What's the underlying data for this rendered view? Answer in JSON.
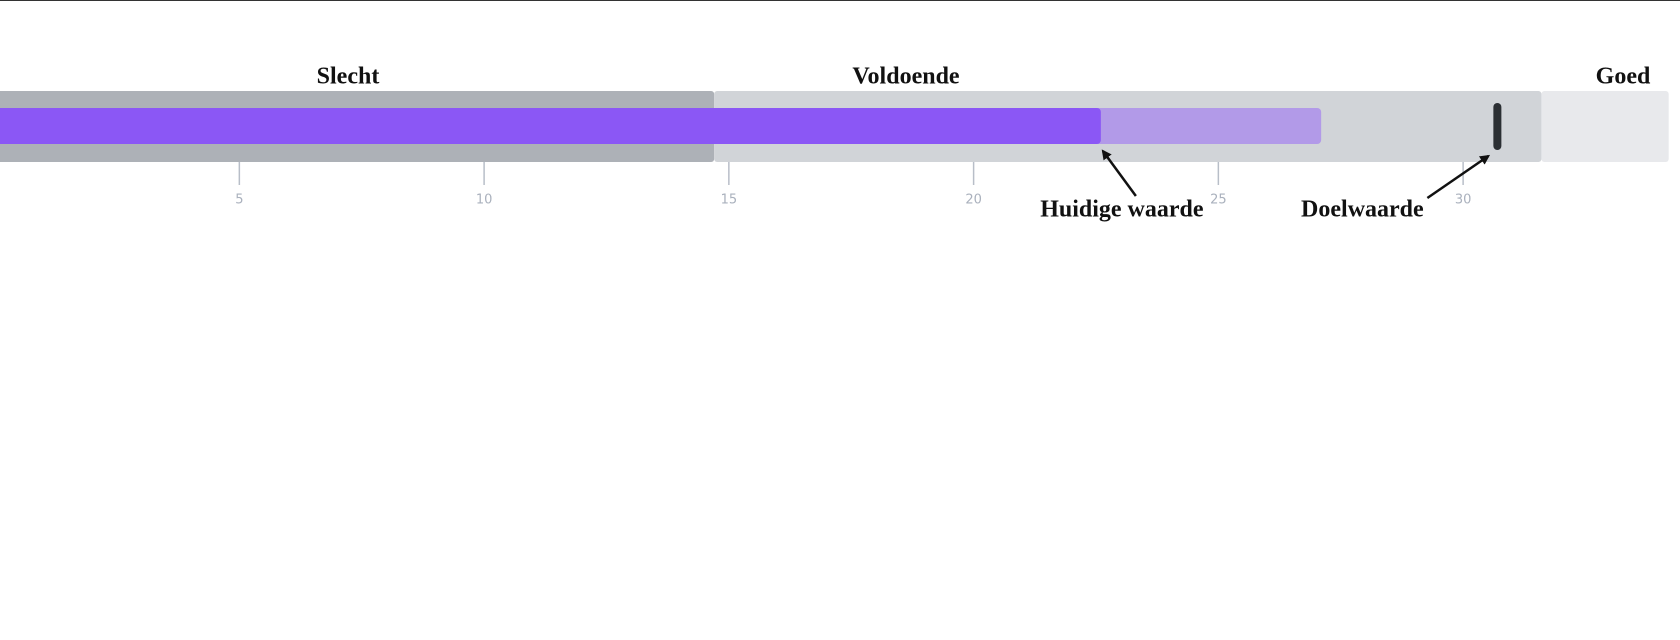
{
  "chart_data": {
    "type": "bullet",
    "xlim": [
      0,
      34.2
    ],
    "xticks": [
      5,
      10,
      15,
      20,
      25,
      30
    ],
    "ranges": [
      {
        "name": "Slecht",
        "value": 14.7,
        "color": "#adb1b7"
      },
      {
        "name": "Voldoende",
        "value": 31.6,
        "color": "#d1d4d8"
      },
      {
        "name": "Goed",
        "value": 34.2,
        "color": "#e8e9ec"
      }
    ],
    "actual": {
      "value": 22.6,
      "color": "#8b57f5"
    },
    "projected": {
      "value": 27.1,
      "color": "#b29ae8"
    },
    "target": {
      "value": 30.7,
      "color": "#2b2f33"
    },
    "annotations": [
      "Huidige waarde",
      "Doelwaarde"
    ]
  }
}
